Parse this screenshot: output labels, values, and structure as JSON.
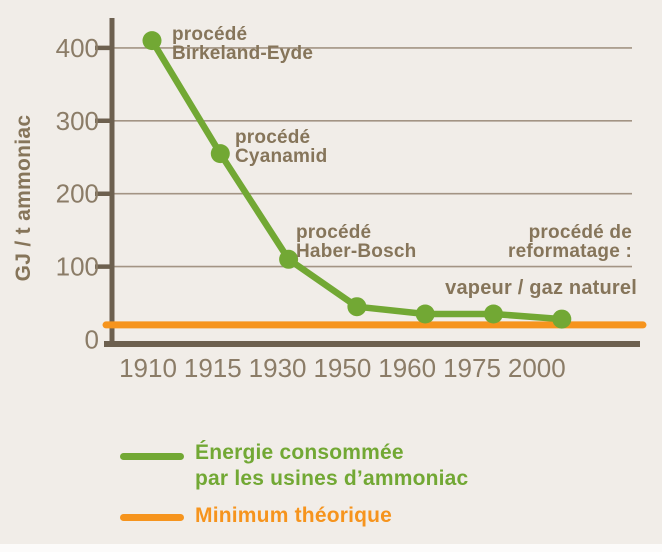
{
  "colors": {
    "background": "#f1ede8",
    "green": "#72a834",
    "orange": "#f6941d",
    "axis_brown": "#6d604f",
    "grid_brown": "#a39484",
    "tick_label_brown": "#8b7c67",
    "annotation_brown": "#86755a"
  },
  "chart_data": {
    "type": "line",
    "title": "",
    "ylabel": "GJ / t ammoniac",
    "xlabel": "",
    "x_categories": [
      "1910",
      "1915",
      "1930",
      "1950",
      "1960",
      "1975",
      "2000"
    ],
    "yticks": [
      0,
      100,
      200,
      300,
      400
    ],
    "ylim": [
      0,
      440
    ],
    "grid": "horizontal",
    "legend_position": "below",
    "series": [
      {
        "name": "Énergie consommée par les usines d’ammoniac",
        "type": "line+markers",
        "color": "#72a834",
        "values": [
          410,
          255,
          110,
          45,
          35,
          35,
          28
        ]
      },
      {
        "name": "Minimum théorique",
        "type": "horizontal-line",
        "color": "#f6941d",
        "value": 20
      }
    ],
    "annotations": [
      {
        "id": "birkeland-eyde",
        "lines": [
          "procédé",
          "Birkeland-Eyde"
        ]
      },
      {
        "id": "cyanamid",
        "lines": [
          "procédé",
          "Cyanamid"
        ]
      },
      {
        "id": "haber-bosch",
        "lines": [
          "procédé",
          "Haber-Bosch"
        ]
      },
      {
        "id": "reformatage",
        "lines": [
          "procédé de",
          "reformatage :"
        ]
      },
      {
        "id": "vapeur-gaz-naturel",
        "lines": [
          "vapeur / gaz naturel"
        ]
      }
    ]
  },
  "legend": {
    "items": [
      {
        "lines": [
          "Énergie consommée",
          "par les usines d’ammoniac"
        ],
        "color": "#72a834"
      },
      {
        "lines": [
          "Minimum théorique"
        ],
        "color": "#f6941d"
      }
    ]
  }
}
